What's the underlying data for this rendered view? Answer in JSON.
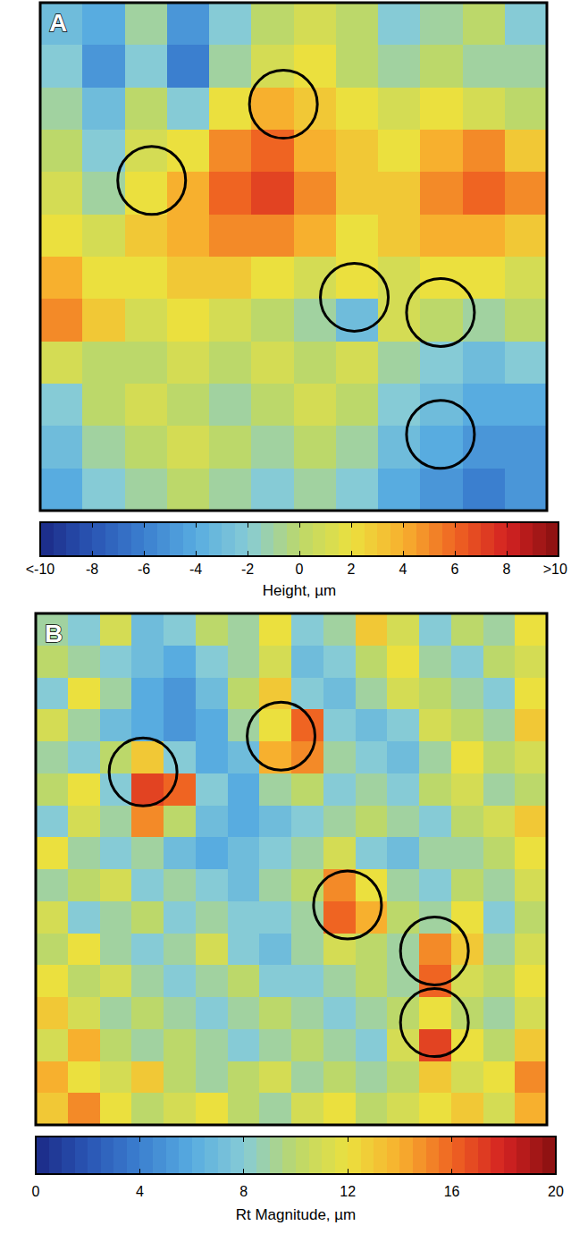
{
  "chart_data": [
    {
      "type": "heatmap",
      "panel": "A",
      "tick_labels": false,
      "values": [
        [
          -3,
          -4,
          -1,
          -5,
          -2,
          0,
          1,
          0,
          -2,
          -1,
          0,
          -2
        ],
        [
          -2,
          -5,
          -2,
          -6,
          -1,
          1,
          2,
          0,
          -1,
          0,
          -1,
          -1
        ],
        [
          -1,
          -3,
          0,
          -2,
          2,
          4,
          3,
          2,
          1,
          2,
          1,
          0
        ],
        [
          0,
          -2,
          1,
          2,
          5,
          6,
          4,
          3,
          2,
          4,
          5,
          3
        ],
        [
          1,
          -1,
          2,
          4,
          6,
          7,
          5,
          3,
          3,
          5,
          6,
          5
        ],
        [
          2,
          1,
          3,
          4,
          5,
          5,
          4,
          2,
          3,
          4,
          4,
          3
        ],
        [
          4,
          2,
          2,
          3,
          3,
          2,
          1,
          2,
          1,
          2,
          2,
          1
        ],
        [
          5,
          3,
          1,
          2,
          1,
          0,
          -1,
          -3,
          1,
          0,
          -1,
          0
        ],
        [
          1,
          0,
          0,
          1,
          0,
          1,
          0,
          1,
          -1,
          -2,
          -3,
          -2
        ],
        [
          -2,
          0,
          1,
          0,
          -1,
          0,
          1,
          0,
          -2,
          -3,
          -4,
          -4
        ],
        [
          -3,
          -1,
          0,
          1,
          0,
          -1,
          0,
          -1,
          -3,
          -4,
          -5,
          -5
        ],
        [
          -4,
          -2,
          -1,
          0,
          -1,
          -2,
          -1,
          -2,
          -4,
          -5,
          -6,
          -5
        ]
      ],
      "color_range": [
        -10,
        10
      ],
      "color_ticks": [
        {
          "value": -10,
          "label": "<-10"
        },
        -8,
        -6,
        -4,
        -2,
        0,
        2,
        4,
        6,
        8,
        {
          "value": 10,
          "label": ">10"
        }
      ],
      "colorbar_label": "Height, µm"
    },
    {
      "type": "heatmap",
      "panel": "B",
      "tick_labels": false,
      "values": [
        [
          9,
          8,
          11,
          7,
          8,
          10,
          9,
          12,
          8,
          9,
          13,
          11,
          8,
          10,
          9,
          12
        ],
        [
          10,
          9,
          8,
          7,
          6,
          8,
          9,
          11,
          7,
          8,
          10,
          12,
          9,
          8,
          10,
          11
        ],
        [
          8,
          12,
          9,
          6,
          5,
          7,
          10,
          13,
          8,
          7,
          9,
          11,
          10,
          9,
          8,
          12
        ],
        [
          11,
          9,
          7,
          6,
          5,
          6,
          9,
          12,
          16,
          8,
          7,
          8,
          11,
          10,
          9,
          13
        ],
        [
          9,
          8,
          10,
          13,
          8,
          6,
          7,
          14,
          15,
          9,
          8,
          7,
          9,
          12,
          10,
          11
        ],
        [
          10,
          12,
          8,
          17,
          16,
          8,
          6,
          9,
          10,
          8,
          9,
          8,
          10,
          11,
          9,
          10
        ],
        [
          8,
          11,
          9,
          15,
          10,
          7,
          6,
          7,
          8,
          9,
          10,
          9,
          8,
          10,
          11,
          13
        ],
        [
          12,
          9,
          8,
          9,
          7,
          6,
          7,
          8,
          9,
          11,
          8,
          7,
          9,
          9,
          10,
          12
        ],
        [
          9,
          10,
          11,
          8,
          9,
          8,
          7,
          9,
          10,
          15,
          12,
          9,
          8,
          10,
          9,
          11
        ],
        [
          11,
          8,
          9,
          10,
          8,
          9,
          8,
          8,
          9,
          16,
          14,
          10,
          9,
          12,
          8,
          10
        ],
        [
          10,
          12,
          9,
          8,
          9,
          11,
          8,
          7,
          9,
          11,
          10,
          9,
          15,
          13,
          9,
          11
        ],
        [
          12,
          10,
          11,
          9,
          8,
          9,
          10,
          8,
          8,
          9,
          10,
          9,
          16,
          11,
          10,
          12
        ],
        [
          13,
          11,
          9,
          10,
          9,
          8,
          9,
          10,
          9,
          8,
          9,
          10,
          12,
          10,
          9,
          11
        ],
        [
          11,
          14,
          10,
          9,
          10,
          9,
          8,
          9,
          10,
          9,
          8,
          11,
          17,
          12,
          10,
          13
        ],
        [
          14,
          12,
          11,
          13,
          10,
          9,
          10,
          11,
          9,
          10,
          9,
          10,
          13,
          11,
          12,
          15
        ],
        [
          13,
          15,
          12,
          10,
          11,
          12,
          10,
          9,
          11,
          12,
          10,
          11,
          12,
          13,
          11,
          14
        ]
      ],
      "color_range": [
        0,
        20
      ],
      "color_ticks": [
        0,
        4,
        8,
        12,
        16,
        20
      ],
      "colorbar_label": "Rt Magnitude, µm"
    }
  ]
}
